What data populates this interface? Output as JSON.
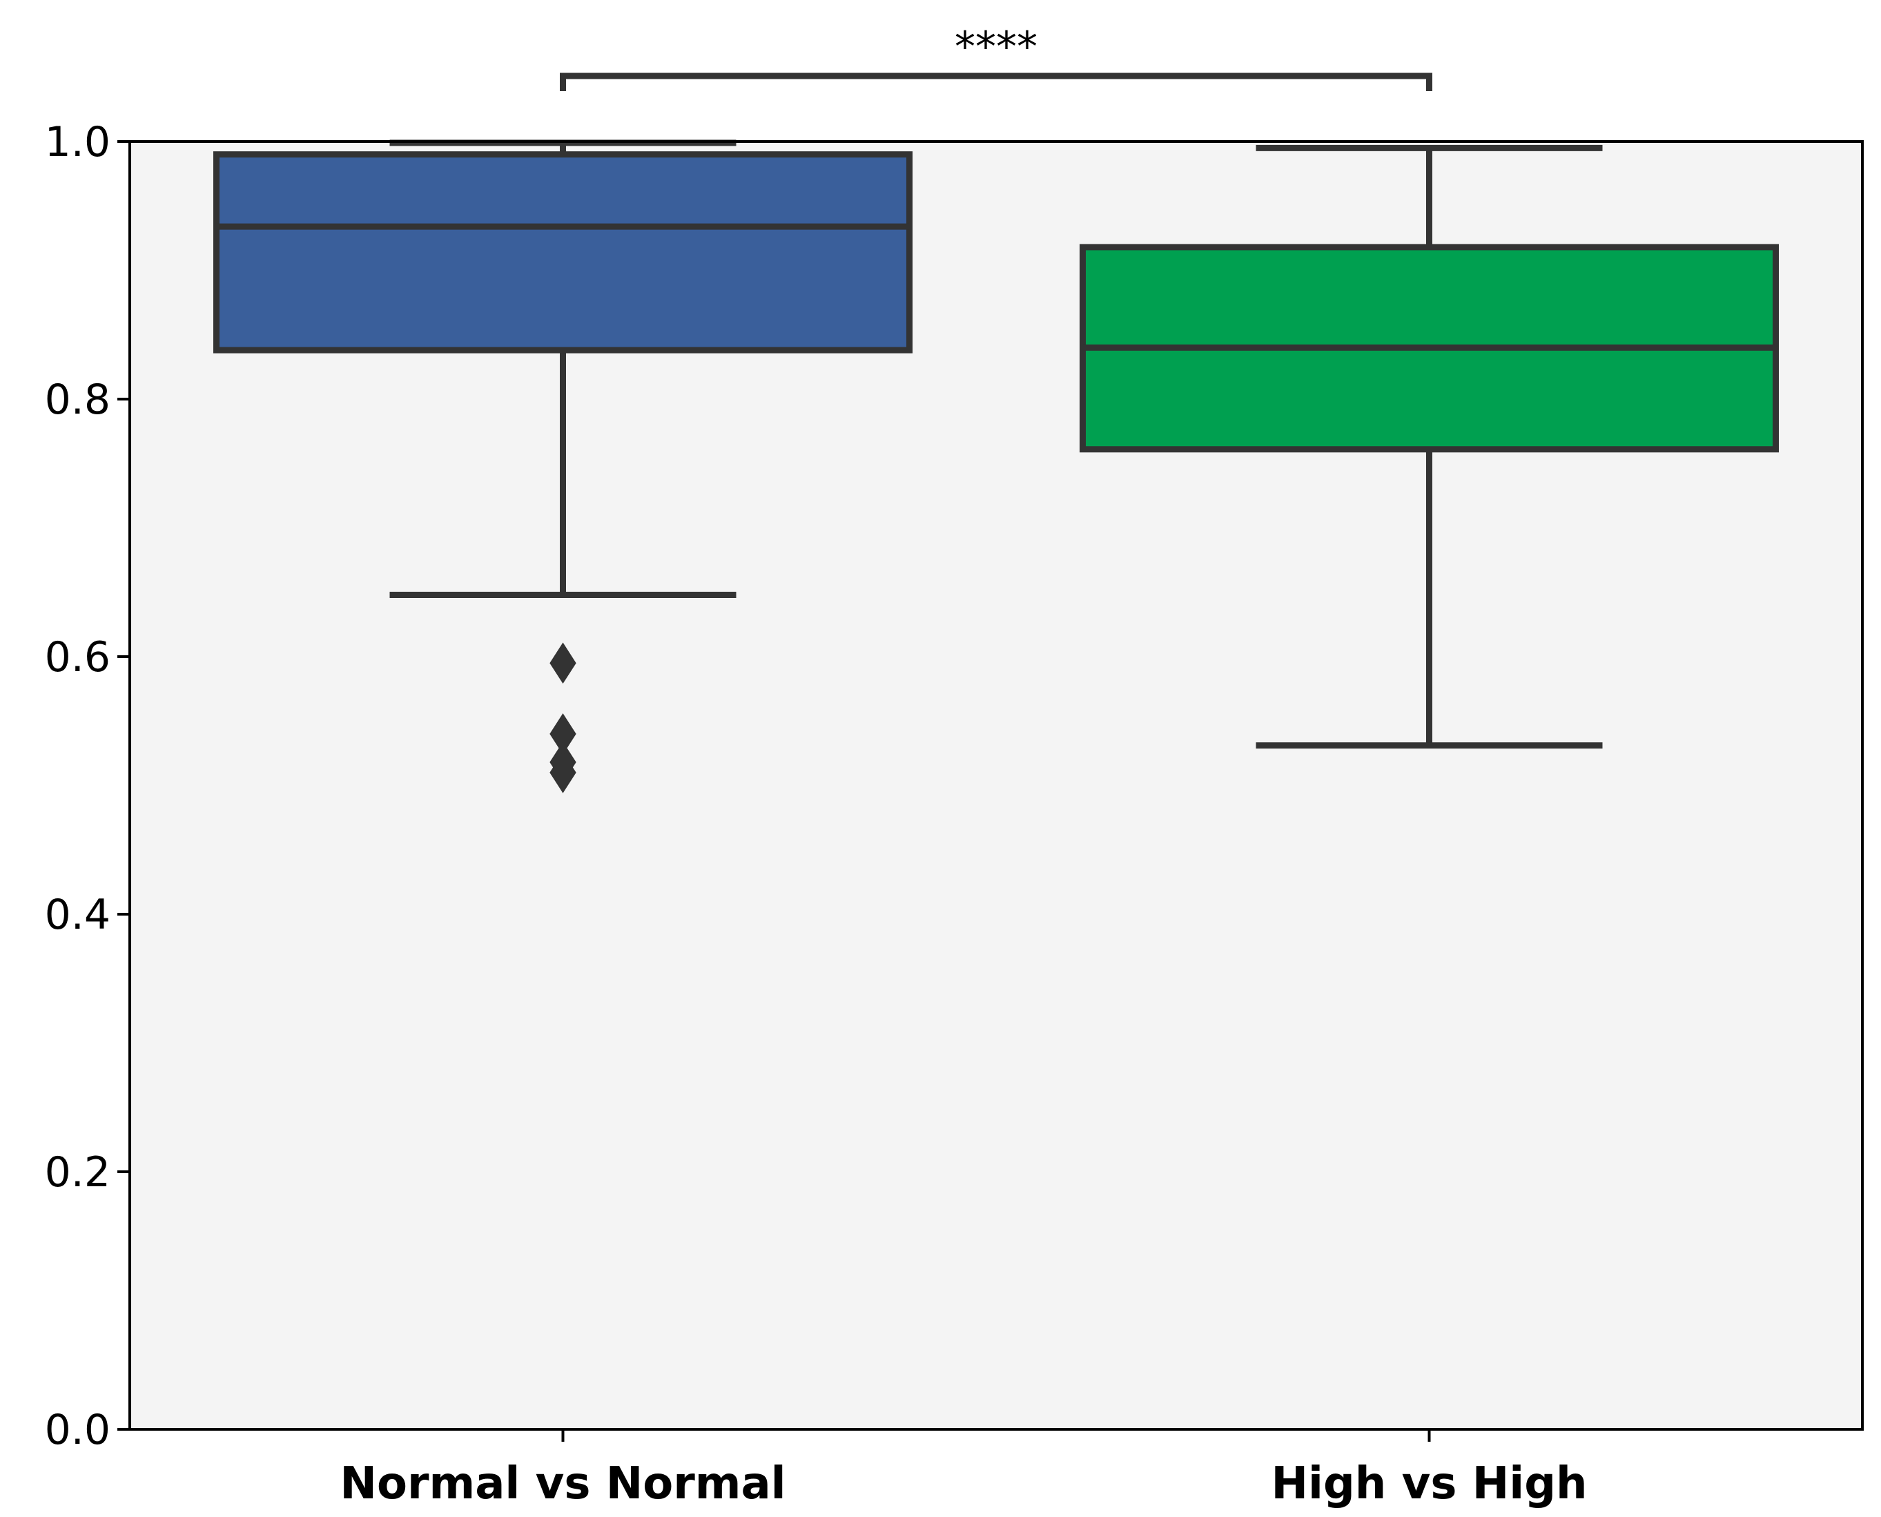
{
  "chart_data": {
    "type": "box",
    "categories": [
      "Normal vs Normal",
      "High vs High"
    ],
    "boxes": [
      {
        "category": "Normal vs Normal",
        "whisker_low": 0.648,
        "q1": 0.838,
        "median": 0.934,
        "q3": 0.99,
        "whisker_high": 0.999,
        "outliers": [
          0.595,
          0.54,
          0.518,
          0.51
        ],
        "color": "#3A5F9B"
      },
      {
        "category": "High vs High",
        "whisker_low": 0.531,
        "q1": 0.761,
        "median": 0.84,
        "q3": 0.918,
        "whisker_high": 0.995,
        "outliers": [],
        "color": "#00A050"
      }
    ],
    "ylim": [
      0.0,
      1.0
    ],
    "yticks": [
      "0.0",
      "0.2",
      "0.4",
      "0.6",
      "0.8",
      "1.0"
    ],
    "significance": {
      "label": "****",
      "between": [
        "Normal vs Normal",
        "High vs High"
      ]
    },
    "plot_background": "#F4F4F4",
    "line_color": "#333333",
    "grid": false
  }
}
